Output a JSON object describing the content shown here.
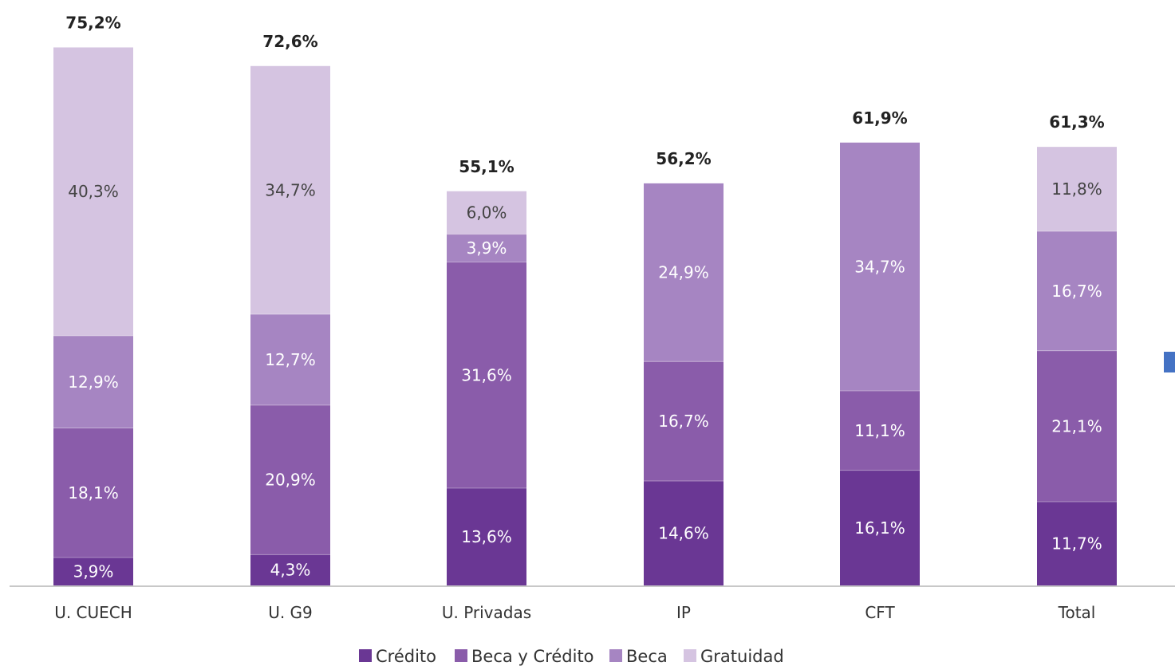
{
  "chart_data": {
    "type": "bar",
    "stacked": true,
    "categories": [
      "U. CUECH",
      "U. G9",
      "U. Privadas",
      "IP",
      "CFT",
      "Total"
    ],
    "series": [
      {
        "name": "Crédito",
        "color": "#6a3794",
        "values": [
          3.9,
          4.3,
          13.6,
          14.6,
          16.1,
          11.7
        ],
        "labels": [
          "3,9%",
          "4,3%",
          "13,6%",
          "14,6%",
          "16,1%",
          "11,7%"
        ]
      },
      {
        "name": "Beca y Crédito",
        "color": "#8a5caa",
        "values": [
          18.1,
          20.9,
          31.6,
          16.7,
          11.1,
          21.1
        ],
        "labels": [
          "18,1%",
          "20,9%",
          "31,6%",
          "16,7%",
          "11,1%",
          "21,1%"
        ]
      },
      {
        "name": "Beca",
        "color": "#a685c2",
        "values": [
          12.9,
          12.7,
          3.9,
          24.9,
          34.7,
          16.7
        ],
        "labels": [
          "12,9%",
          "12,7%",
          "3,9%",
          "24,9%",
          "34,7%",
          "16,7%"
        ]
      },
      {
        "name": "Gratuidad",
        "color": "#d5c4e1",
        "values": [
          40.3,
          34.7,
          6.0,
          0,
          0,
          11.8
        ],
        "labels": [
          "40,3%",
          "34,7%",
          "6,0%",
          "",
          "",
          "11,8%"
        ]
      }
    ],
    "totals": [
      75.2,
      72.6,
      55.1,
      56.2,
      61.9,
      61.3
    ],
    "total_labels": [
      "75,2%",
      "72,6%",
      "55,1%",
      "56,2%",
      "61,9%",
      "61,3%"
    ],
    "ylim": [
      0,
      80
    ],
    "grid": false,
    "legend": "bottom-center",
    "title": "",
    "xlabel": "",
    "ylabel": ""
  },
  "colors": {
    "axis": "#c8c8c8",
    "side_marker": "#4472c4",
    "label_light": "#ffffff",
    "label_dark": "#444444"
  }
}
